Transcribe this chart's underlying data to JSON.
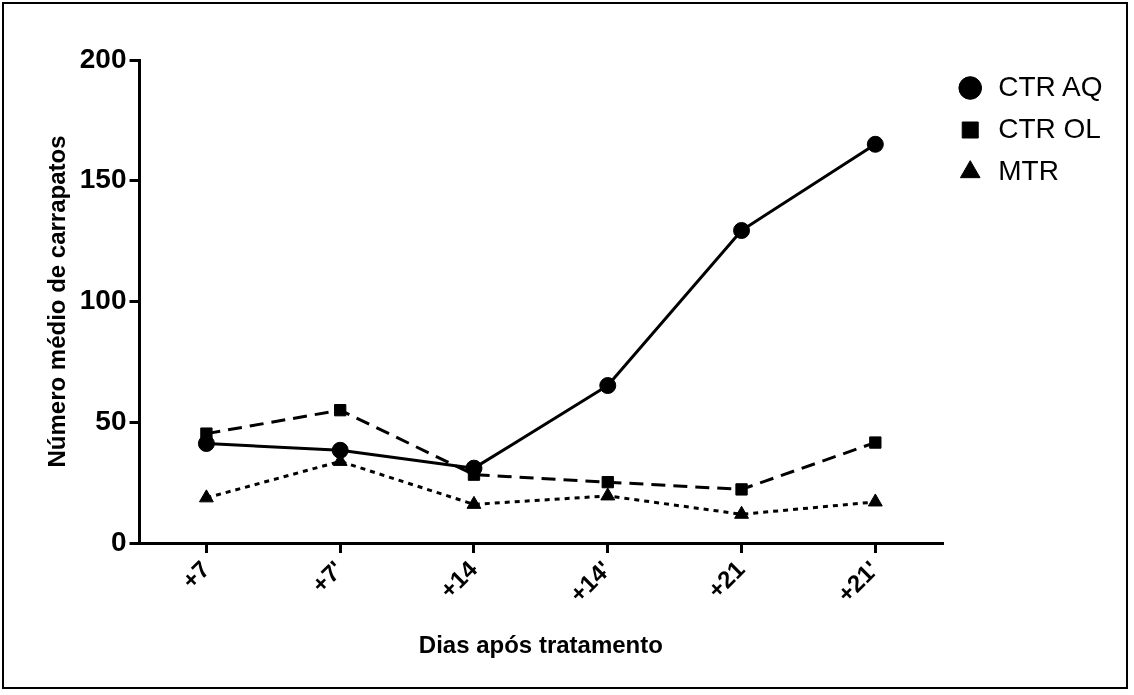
{
  "chart_data": {
    "type": "line",
    "xlabel": "Dias após tratamento",
    "ylabel": "Número médio de carrapatos",
    "categories": [
      "+7",
      "+7'",
      "+14",
      "+14'",
      "+21",
      "+21'"
    ],
    "series": [
      {
        "name": "CTR AQ",
        "color": "#000000",
        "marker": "circle",
        "line_style": "solid",
        "values": [
          41.2,
          38.4,
          31,
          65.2,
          129.4,
          165.1
        ]
      },
      {
        "name": "CTR OL",
        "color": "#000000",
        "marker": "square",
        "line_style": "dashed",
        "values": [
          45.3,
          55,
          28.3,
          25.2,
          22.2,
          41.6
        ]
      },
      {
        "name": "MTR",
        "color": "#000000",
        "marker": "triangle",
        "line_style": "dotted",
        "values": [
          18.7,
          33.8,
          16,
          19.5,
          11.9,
          17
        ]
      }
    ],
    "ylim": [
      0,
      200
    ],
    "yticks": [
      0,
      50,
      100,
      150,
      200
    ],
    "grid": false,
    "legend": "top right"
  }
}
